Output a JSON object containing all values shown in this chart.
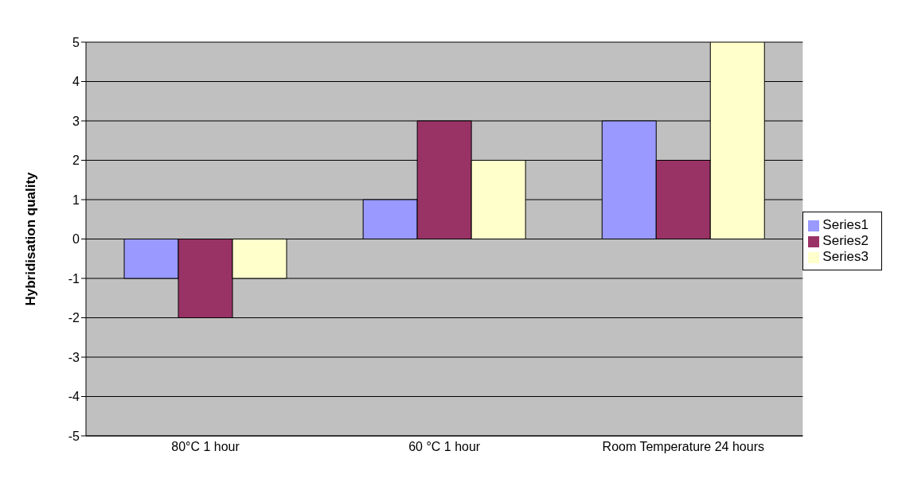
{
  "chart_data": {
    "type": "bar",
    "ylabel": "Hybridisation quality",
    "categories": [
      "80°C  1 hour",
      "60 °C  1 hour",
      "Room Temperature 24 hours"
    ],
    "series": [
      {
        "name": "Series1",
        "color": "#9999ff",
        "values": [
          -1,
          1,
          3
        ]
      },
      {
        "name": "Series2",
        "color": "#993366",
        "values": [
          -2,
          3,
          2
        ]
      },
      {
        "name": "Series3",
        "color": "#ffffcc",
        "values": [
          -1,
          2,
          5
        ]
      }
    ],
    "ylim": [
      -5,
      5
    ],
    "yticks": [
      -5,
      -4,
      -3,
      -2,
      -1,
      0,
      1,
      2,
      3,
      4,
      5
    ],
    "grid": "y",
    "legend": "right"
  }
}
